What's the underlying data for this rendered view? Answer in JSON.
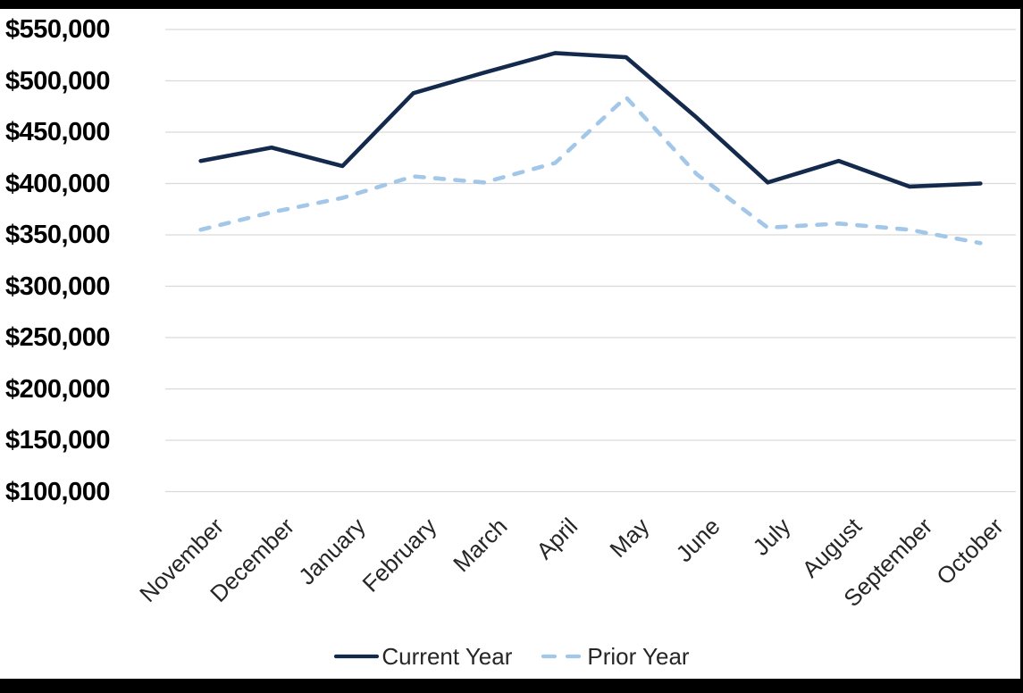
{
  "frame": {
    "border_color": "#000000",
    "background": "#ffffff"
  },
  "chart_data": {
    "type": "line",
    "title": "",
    "xlabel": "",
    "ylabel": "",
    "categories": [
      "November",
      "December",
      "January",
      "February",
      "March",
      "April",
      "May",
      "June",
      "July",
      "August",
      "September",
      "October"
    ],
    "series": [
      {
        "name": "Current Year",
        "color": "#142A4D",
        "line_style": "solid",
        "values": [
          422000,
          435000,
          417000,
          488000,
          508000,
          527000,
          523000,
          464000,
          401000,
          422000,
          397000,
          400000
        ]
      },
      {
        "name": "Prior Year",
        "color": "#A3C7E8",
        "line_style": "dashed",
        "values": [
          355000,
          372000,
          386000,
          407000,
          401000,
          420000,
          484000,
          409000,
          357000,
          361000,
          355000,
          342000
        ]
      }
    ],
    "ylim": [
      100000,
      550000
    ],
    "ytick_step": 50000,
    "ytick_labels": [
      "$550,000",
      "$500,000",
      "$450,000",
      "$400,000",
      "$350,000",
      "$300,000",
      "$250,000",
      "$200,000",
      "$150,000",
      "$100,000"
    ],
    "grid": true,
    "gridline_color": "#D9D9D9",
    "legend_position": "bottom",
    "ytick_label_color": "#000000",
    "xtick_label_color": "#262626"
  }
}
